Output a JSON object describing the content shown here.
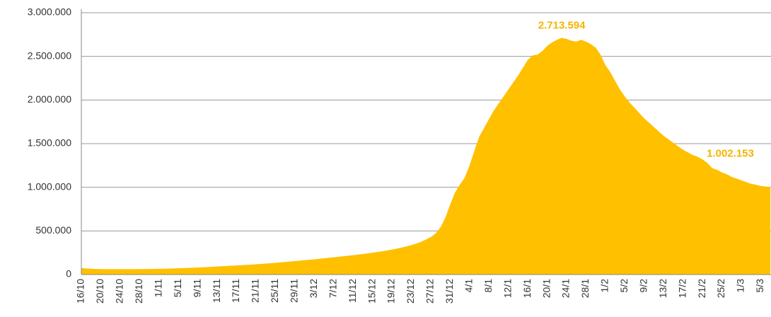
{
  "chart_data": {
    "type": "area",
    "color": "#FFC000",
    "grid": true,
    "ylim": [
      0,
      3000000
    ],
    "yticks": [
      0,
      {
        "value": 500000,
        "label": "500.000"
      },
      {
        "value": 1000000,
        "label": "1.000.000"
      },
      {
        "value": 1500000,
        "label": "1.500.000"
      },
      {
        "value": 2000000,
        "label": "2.000.000"
      },
      {
        "value": 2500000,
        "label": "2.500.000"
      },
      {
        "value": 3000000,
        "label": "3.000.000"
      }
    ],
    "categories": [
      "16/10",
      null,
      null,
      null,
      "20/10",
      null,
      null,
      null,
      "24/10",
      null,
      null,
      null,
      "28/10",
      null,
      null,
      null,
      "1/11",
      null,
      null,
      null,
      "5/11",
      null,
      null,
      null,
      "9/11",
      null,
      null,
      null,
      "13/11",
      null,
      null,
      null,
      "17/11",
      null,
      null,
      null,
      "21/11",
      null,
      null,
      null,
      "25/11",
      null,
      null,
      null,
      "29/11",
      null,
      null,
      null,
      "3/12",
      null,
      null,
      null,
      "7/12",
      null,
      null,
      null,
      "11/12",
      null,
      null,
      null,
      "15/12",
      null,
      null,
      null,
      "19/12",
      null,
      null,
      null,
      "23/12",
      null,
      null,
      null,
      "27/12",
      null,
      null,
      null,
      "31/12",
      null,
      null,
      null,
      "4/1",
      null,
      null,
      null,
      "8/1",
      null,
      null,
      null,
      "12/1",
      null,
      null,
      null,
      "16/1",
      null,
      null,
      null,
      "20/1",
      null,
      null,
      null,
      "24/1",
      null,
      null,
      null,
      "28/1",
      null,
      null,
      null,
      "1/2",
      null,
      null,
      null,
      "5/2",
      null,
      null,
      null,
      "9/2",
      null,
      null,
      null,
      "13/2",
      null,
      null,
      null,
      "17/2",
      null,
      null,
      null,
      "21/2",
      null,
      null,
      null,
      "25/2",
      null,
      null,
      null,
      "1/3",
      null,
      null,
      null,
      "5/3",
      null,
      null
    ],
    "values": [
      75000,
      70000,
      66000,
      64000,
      63000,
      62000,
      62000,
      62000,
      62000,
      62000,
      62000,
      62000,
      63000,
      63000,
      64000,
      65000,
      66000,
      67000,
      68000,
      70000,
      72000,
      74000,
      76000,
      78000,
      80000,
      83000,
      86000,
      89000,
      92000,
      95000,
      98000,
      101000,
      104000,
      107000,
      110000,
      114000,
      118000,
      122000,
      126000,
      130000,
      134000,
      139000,
      144000,
      149000,
      154000,
      159000,
      164000,
      169000,
      174000,
      180000,
      186000,
      192000,
      198000,
      204000,
      210000,
      216000,
      222000,
      228000,
      235000,
      242000,
      250000,
      258000,
      267000,
      276000,
      286000,
      297000,
      309000,
      322000,
      337000,
      355000,
      375000,
      400000,
      430000,
      470000,
      540000,
      650000,
      800000,
      940000,
      1030000,
      1110000,
      1250000,
      1420000,
      1580000,
      1680000,
      1780000,
      1880000,
      1960000,
      2040000,
      2120000,
      2200000,
      2280000,
      2370000,
      2460000,
      2510000,
      2520000,
      2560000,
      2620000,
      2660000,
      2690000,
      2713594,
      2700000,
      2680000,
      2670000,
      2690000,
      2670000,
      2640000,
      2600000,
      2520000,
      2400000,
      2320000,
      2220000,
      2120000,
      2040000,
      1970000,
      1910000,
      1850000,
      1790000,
      1740000,
      1690000,
      1640000,
      1590000,
      1550000,
      1510000,
      1470000,
      1430000,
      1400000,
      1370000,
      1350000,
      1320000,
      1280000,
      1220000,
      1200000,
      1170000,
      1150000,
      1120000,
      1100000,
      1080000,
      1060000,
      1040000,
      1030000,
      1015000,
      1008000,
      1002153
    ],
    "value_labels": [
      null,
      null,
      null,
      null,
      null,
      null,
      null,
      null,
      null,
      null,
      null,
      null,
      null,
      null,
      null,
      null,
      null,
      null,
      null,
      null,
      null,
      null,
      null,
      null,
      null,
      null,
      null,
      null,
      null,
      null,
      null,
      null,
      null,
      null,
      null,
      null,
      null,
      null,
      null,
      null,
      null,
      null,
      null,
      null,
      null,
      null,
      null,
      null,
      null,
      null,
      null,
      null,
      null,
      null,
      null,
      null,
      null,
      null,
      null,
      null,
      null,
      null,
      null,
      null,
      null,
      null,
      null,
      null,
      null,
      null,
      null,
      null,
      null,
      null,
      null,
      null,
      null,
      null,
      null,
      null,
      null,
      null,
      null,
      null,
      null,
      null,
      null,
      null,
      null,
      null,
      null,
      null,
      null,
      null,
      null,
      null,
      null,
      null,
      null,
      "2.713.594",
      null,
      null,
      null,
      null,
      null,
      null,
      null,
      null,
      null,
      null,
      null,
      null,
      null,
      null,
      null,
      null,
      null,
      null,
      null,
      null,
      null,
      null,
      null,
      null,
      null,
      null,
      null,
      null,
      null,
      null,
      null,
      null,
      null,
      null,
      null,
      null,
      null,
      null,
      null,
      null,
      null,
      null,
      "1.002.153"
    ]
  }
}
